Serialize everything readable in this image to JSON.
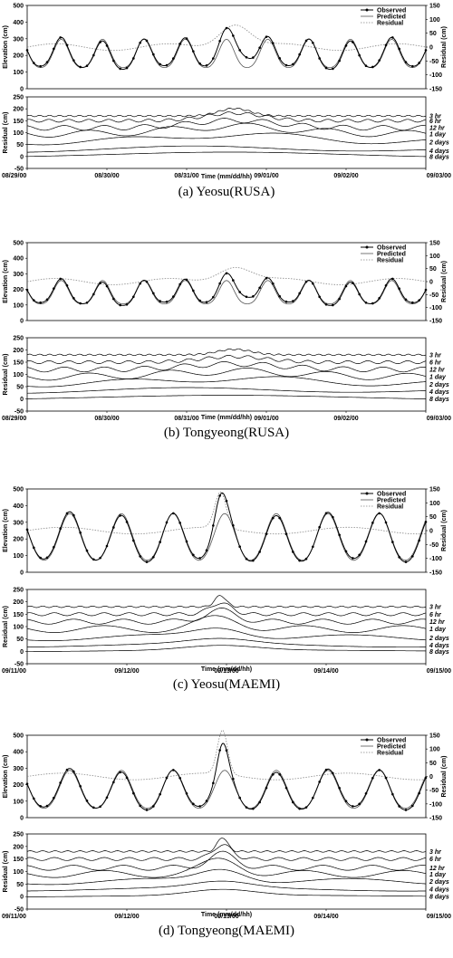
{
  "chart_data": [
    {
      "type": "line",
      "caption": "(a) Yeosu(RUSA)",
      "top": {
        "ylabel": "Elevation (cm)",
        "ylim": [
          0,
          500
        ],
        "yticks": [
          "0",
          "100",
          "200",
          "300",
          "400",
          "500"
        ],
        "y2label": "Residual (cm)",
        "y2lim": [
          -150,
          150
        ],
        "y2ticks": [
          "-150",
          "-100",
          "-50",
          "0",
          "50",
          "100",
          "150"
        ],
        "legend": [
          "Observed",
          "Predicted",
          "Residual"
        ],
        "mean": 200,
        "amp": 85,
        "residual_base": 0,
        "surge": {
          "center": 0.52,
          "width": 0.055,
          "height": 90
        }
      },
      "bottom": {
        "ylabel": "Residual (cm)",
        "ylim": [
          -50,
          250
        ],
        "yticks": [
          "-50",
          "0",
          "50",
          "100",
          "150",
          "200",
          "250"
        ],
        "components": [
          "3 hr",
          "6 hr",
          "12 hr",
          "1 day",
          "2 days",
          "4 days",
          "8 days"
        ],
        "baselines": [
          170,
          150,
          120,
          95,
          60,
          25,
          0
        ]
      },
      "xlabel": "Time (mm/dd/hh)",
      "xticks": [
        "08/29/00",
        "08/30/00",
        "08/31/00",
        "09/01/00",
        "09/02/00",
        "09/03/00"
      ]
    },
    {
      "type": "line",
      "caption": "(b) Tongyeong(RUSA)",
      "top": {
        "ylabel": "Elevation (cm)",
        "ylim": [
          0,
          500
        ],
        "yticks": [
          "0",
          "100",
          "200",
          "300",
          "400",
          "500"
        ],
        "y2label": "Residual (cm)",
        "y2lim": [
          -150,
          150
        ],
        "y2ticks": [
          "-150",
          "-100",
          "-50",
          "0",
          "50",
          "100",
          "150"
        ],
        "legend": [
          "Observed",
          "Predicted",
          "Residual"
        ],
        "mean": 170,
        "amp": 75,
        "residual_base": 0,
        "surge": {
          "center": 0.52,
          "width": 0.06,
          "height": 65
        }
      },
      "bottom": {
        "ylabel": "Residual (cm)",
        "ylim": [
          -50,
          250
        ],
        "yticks": [
          "-50",
          "0",
          "50",
          "100",
          "150",
          "200",
          "250"
        ],
        "components": [
          "3 hr",
          "6 hr",
          "12 hr",
          "1 day",
          "2 days",
          "4 days",
          "8 days"
        ],
        "baselines": [
          180,
          150,
          120,
          90,
          60,
          30,
          0
        ]
      },
      "xlabel": "Time (mm/dd/hh)",
      "xticks": [
        "08/29/00",
        "08/30/00",
        "08/31/00",
        "09/01/00",
        "09/02/00",
        "09/03/00"
      ]
    },
    {
      "type": "line",
      "caption": "(c) Yeosu(MAEMI)",
      "top": {
        "ylabel": "Elevation (cm)",
        "ylim": [
          0,
          500
        ],
        "yticks": [
          "0",
          "100",
          "200",
          "300",
          "400",
          "500"
        ],
        "y2label": "Residual (cm)",
        "y2lim": [
          -150,
          150
        ],
        "y2ticks": [
          "-150",
          "-100",
          "-50",
          "0",
          "50",
          "100",
          "150"
        ],
        "legend": [
          "Observed",
          "Predicted",
          "Residual"
        ],
        "mean": 200,
        "amp": 140,
        "residual_base": 0,
        "surge": {
          "center": 0.485,
          "width": 0.02,
          "height": 130
        }
      },
      "bottom": {
        "ylabel": "Residual (cm)",
        "ylim": [
          -50,
          250
        ],
        "yticks": [
          "-50",
          "0",
          "50",
          "100",
          "150",
          "200",
          "250"
        ],
        "components": [
          "3 hr",
          "6 hr",
          "12 hr",
          "1 day",
          "2 days",
          "4 days",
          "8 days"
        ],
        "baselines": [
          180,
          150,
          120,
          90,
          55,
          25,
          0
        ]
      },
      "xlabel": "Time (mm/dd/hh)",
      "xticks": [
        "09/11/00",
        "09/12/00",
        "09/13/00",
        "09/14/00",
        "09/15/00"
      ]
    },
    {
      "type": "line",
      "caption": "(d) Tongyeong(MAEMI)",
      "top": {
        "ylabel": "Elevation (cm)",
        "ylim": [
          0,
          500
        ],
        "yticks": [
          "0",
          "100",
          "200",
          "300",
          "400",
          "500"
        ],
        "y2label": "Residual (cm)",
        "y2lim": [
          -150,
          150
        ],
        "y2ticks": [
          "-150",
          "-100",
          "-50",
          "0",
          "50",
          "100",
          "150"
        ],
        "legend": [
          "Observed",
          "Predicted",
          "Residual"
        ],
        "mean": 160,
        "amp": 115,
        "residual_base": 0,
        "surge": {
          "center": 0.49,
          "width": 0.018,
          "height": 160
        }
      },
      "bottom": {
        "ylabel": "Residual (cm)",
        "ylim": [
          -50,
          250
        ],
        "yticks": [
          "-50",
          "0",
          "50",
          "100",
          "150",
          "200",
          "250"
        ],
        "components": [
          "3 hr",
          "6 hr",
          "12 hr",
          "1 day",
          "2 days",
          "4 days",
          "8 days"
        ],
        "baselines": [
          180,
          150,
          115,
          90,
          60,
          30,
          0
        ]
      },
      "xlabel": "Time (mm/dd/hh)",
      "xticks": [
        "09/11/00",
        "09/12/00",
        "09/13/00",
        "09/14/00",
        "09/15/00"
      ]
    }
  ]
}
